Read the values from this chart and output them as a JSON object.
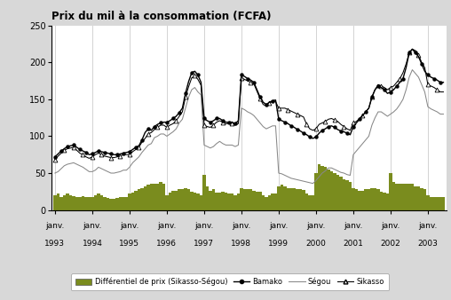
{
  "title": "Prix du mil à la consommation (FCFA)",
  "ylim": [
    0,
    250
  ],
  "yticks": [
    0,
    50,
    100,
    150,
    200,
    250
  ],
  "bar_color": "#7A8C1E",
  "bamako_color": "#000000",
  "segou_color": "#888888",
  "sikasso_color": "#000000",
  "background_color": "#d8d8d8",
  "plot_background": "#ffffff",
  "legend_items": [
    "Différentiel de prix (Sikasso-Ségou)",
    "Bamako",
    "Ségou",
    "Sikasso"
  ],
  "bamako": [
    72,
    76,
    80,
    83,
    86,
    87,
    88,
    85,
    82,
    80,
    78,
    75,
    76,
    78,
    80,
    79,
    78,
    77,
    76,
    75,
    75,
    76,
    77,
    78,
    79,
    82,
    85,
    87,
    95,
    105,
    110,
    108,
    113,
    116,
    118,
    119,
    119,
    121,
    124,
    127,
    132,
    138,
    158,
    174,
    186,
    188,
    183,
    173,
    124,
    121,
    119,
    121,
    124,
    124,
    121,
    119,
    119,
    119,
    117,
    121,
    183,
    181,
    178,
    176,
    173,
    163,
    153,
    146,
    143,
    146,
    148,
    149,
    123,
    121,
    119,
    117,
    114,
    112,
    109,
    107,
    104,
    102,
    99,
    97,
    99,
    104,
    108,
    110,
    113,
    114,
    112,
    109,
    107,
    106,
    104,
    102,
    113,
    118,
    123,
    128,
    133,
    138,
    153,
    163,
    168,
    166,
    163,
    158,
    160,
    163,
    168,
    173,
    178,
    193,
    213,
    218,
    213,
    208,
    198,
    188,
    183,
    180,
    178,
    176,
    173,
    173
  ],
  "segou": [
    50,
    52,
    56,
    60,
    62,
    63,
    64,
    62,
    60,
    58,
    55,
    52,
    52,
    54,
    58,
    56,
    54,
    52,
    50,
    50,
    51,
    52,
    54,
    54,
    58,
    64,
    68,
    72,
    78,
    83,
    88,
    90,
    98,
    100,
    103,
    103,
    100,
    103,
    106,
    110,
    118,
    123,
    138,
    153,
    163,
    166,
    160,
    156,
    88,
    86,
    84,
    86,
    90,
    93,
    90,
    88,
    88,
    88,
    86,
    88,
    138,
    136,
    133,
    131,
    128,
    123,
    118,
    113,
    110,
    112,
    114,
    114,
    50,
    49,
    47,
    45,
    43,
    42,
    41,
    40,
    39,
    38,
    37,
    36,
    40,
    45,
    50,
    53,
    57,
    57,
    55,
    53,
    51,
    50,
    48,
    47,
    75,
    80,
    85,
    90,
    95,
    100,
    115,
    125,
    133,
    133,
    130,
    127,
    130,
    133,
    137,
    143,
    150,
    163,
    180,
    190,
    185,
    180,
    170,
    160,
    140,
    137,
    135,
    133,
    130,
    130
  ],
  "sikasso": [
    68,
    73,
    77,
    81,
    83,
    84,
    85,
    81,
    77,
    75,
    72,
    70,
    72,
    75,
    77,
    75,
    73,
    72,
    71,
    71,
    72,
    73,
    75,
    75,
    75,
    79,
    82,
    85,
    92,
    97,
    103,
    105,
    109,
    112,
    115,
    115,
    112,
    115,
    117,
    121,
    127,
    133,
    153,
    167,
    179,
    182,
    177,
    169,
    115,
    113,
    112,
    115,
    119,
    121,
    119,
    117,
    117,
    117,
    115,
    117,
    179,
    177,
    175,
    173,
    171,
    161,
    151,
    143,
    141,
    145,
    147,
    147,
    138,
    138,
    138,
    136,
    134,
    132,
    130,
    128,
    126,
    116,
    110,
    108,
    110,
    116,
    118,
    120,
    123,
    124,
    122,
    120,
    116,
    113,
    110,
    108,
    118,
    120,
    124,
    128,
    133,
    138,
    153,
    163,
    170,
    168,
    166,
    163,
    166,
    168,
    173,
    178,
    186,
    198,
    213,
    218,
    216,
    210,
    200,
    193,
    170,
    168,
    166,
    163,
    160,
    160
  ],
  "differential": [
    20,
    22,
    18,
    20,
    22,
    20,
    19,
    18,
    18,
    19,
    18,
    17,
    18,
    20,
    22,
    20,
    18,
    16,
    15,
    15,
    16,
    17,
    18,
    18,
    22,
    24,
    26,
    28,
    30,
    32,
    34,
    35,
    36,
    36,
    38,
    36,
    20,
    24,
    26,
    26,
    28,
    28,
    30,
    28,
    25,
    24,
    22,
    20,
    48,
    32,
    26,
    28,
    24,
    24,
    25,
    23,
    22,
    22,
    20,
    22,
    30,
    28,
    28,
    28,
    26,
    25,
    25,
    20,
    18,
    20,
    22,
    22,
    32,
    34,
    32,
    30,
    30,
    30,
    28,
    28,
    27,
    22,
    20,
    20,
    50,
    62,
    60,
    58,
    55,
    52,
    50,
    48,
    45,
    42,
    40,
    38,
    30,
    28,
    26,
    26,
    28,
    28,
    30,
    30,
    28,
    25,
    24,
    22,
    50,
    38,
    36,
    35,
    35,
    36,
    35,
    35,
    32,
    32,
    30,
    28,
    20,
    18,
    18,
    18,
    18,
    18
  ]
}
